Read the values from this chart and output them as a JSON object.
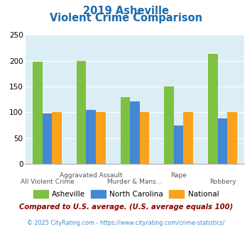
{
  "title_line1": "2019 Asheville",
  "title_line2": "Violent Crime Comparison",
  "asheville": [
    198,
    200,
    130,
    150,
    214
  ],
  "north_carolina": [
    98,
    105,
    121,
    74,
    88
  ],
  "national": [
    101,
    100,
    101,
    101,
    101
  ],
  "color_asheville": "#7dc142",
  "color_nc": "#4488d4",
  "color_national": "#faa21b",
  "ylim": [
    0,
    250
  ],
  "yticks": [
    0,
    50,
    100,
    150,
    200,
    250
  ],
  "legend_labels": [
    "Asheville",
    "North Carolina",
    "National"
  ],
  "top_xlabels": {
    "1": "Aggravated Assault",
    "3": "Rape"
  },
  "bottom_xlabels": {
    "0": "All Violent Crime",
    "2": "Murder & Mans...",
    "4": "Robbery"
  },
  "footnote1": "Compared to U.S. average. (U.S. average equals 100)",
  "footnote2": "© 2025 CityRating.com - https://www.cityrating.com/crime-statistics/",
  "title_color": "#1a6aad",
  "footnote1_color": "#8b0000",
  "footnote2_color": "#4488d4",
  "bg_color": "#dceef5"
}
